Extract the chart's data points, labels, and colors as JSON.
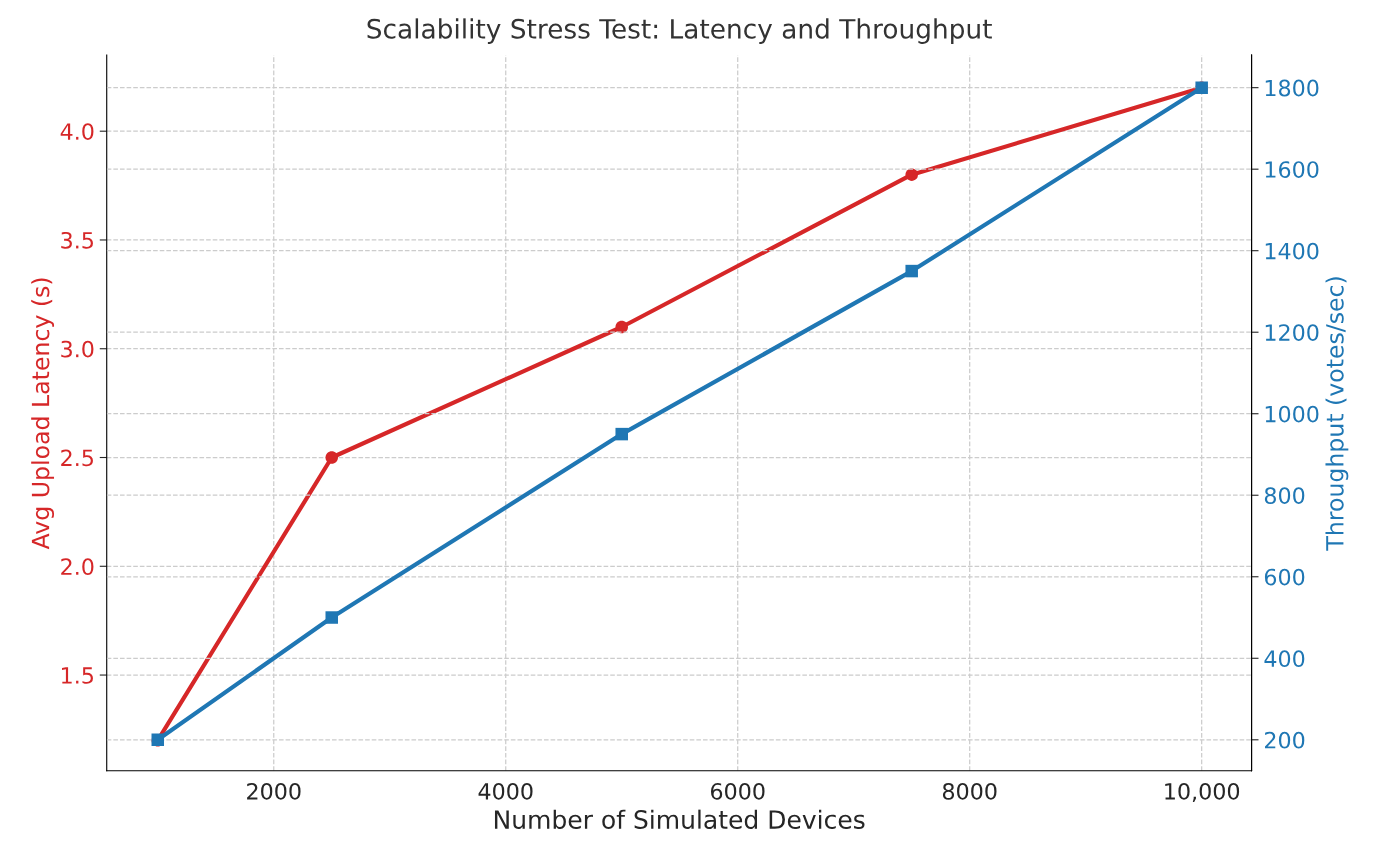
{
  "chart_data": {
    "type": "line",
    "title": "Scalability Stress Test: Latency and Throughput",
    "xlabel": "Number of Simulated Devices",
    "ylabel": "Avg Upload Latency (s)",
    "y2label": "Throughput (votes/sec)",
    "x": [
      1000,
      2500,
      5000,
      7500,
      10000
    ],
    "series": [
      {
        "color": "#d62728",
        "marker": "circle",
        "values": [
          1.2,
          2.5,
          3.1,
          3.8,
          4.2
        ]
      },
      {
        "color": "#1f77b4",
        "marker": "square",
        "axis": "y2",
        "values": [
          200,
          500,
          950,
          1350,
          1800
        ]
      }
    ],
    "xlim": [
      560,
      10430
    ],
    "xticks": [
      2000,
      4000,
      6000,
      8000,
      {
        "value": 10000,
        "label": "10,000"
      }
    ],
    "ylim": [
      1.06,
      4.35
    ],
    "yticks": [
      1.5,
      {
        "value": 2,
        "label": "2.0"
      },
      2.5,
      {
        "value": 3,
        "label": "3.0"
      },
      3.5,
      {
        "value": 4,
        "label": "4.0"
      }
    ],
    "y2lim": [
      124,
      1880
    ],
    "y2ticks": [
      200,
      400,
      600,
      800,
      1000,
      1200,
      1400,
      1600,
      1800
    ],
    "grid": true,
    "line_style": "solid"
  }
}
